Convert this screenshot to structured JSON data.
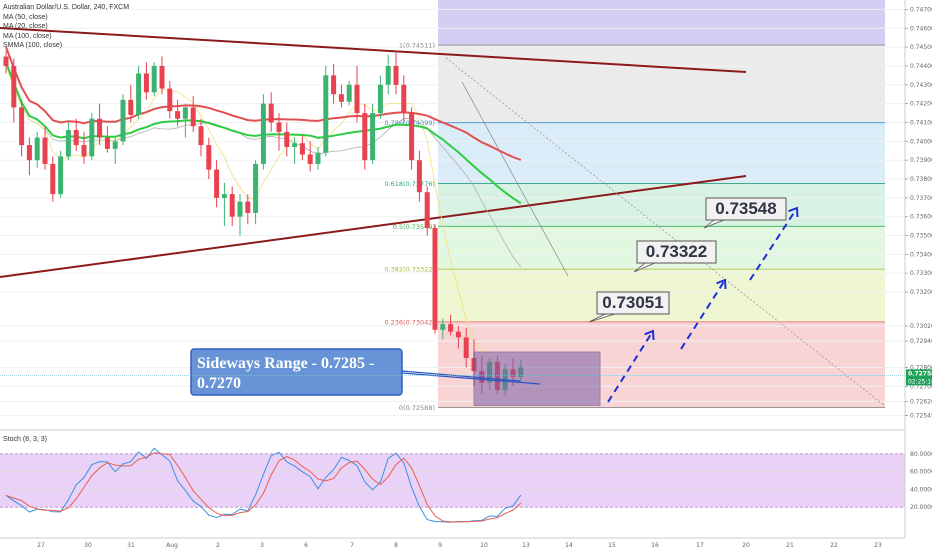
{
  "legend": {
    "title": "Australian Dollar/U.S. Dollar, 240, FXCM",
    "ma50": "MA (50, close)",
    "ma20": "MA (20, close)",
    "ma100": "MA (100, close)",
    "smma100": "SMMA (100, close)",
    "stoch": "Stoch (8, 3, 3)"
  },
  "chart_data": {
    "type": "line",
    "price_ticks": [
      "0.74700",
      "0.74600",
      "0.74500",
      "0.74400",
      "0.74300",
      "0.74200",
      "0.74100",
      "0.74000",
      "0.73900",
      "0.73800",
      "0.73700",
      "0.73600",
      "0.73500",
      "0.73400",
      "0.73300",
      "0.73200",
      "0.73020",
      "0.72940",
      "0.72800",
      "0.72700",
      "0.72620",
      "0.72545"
    ],
    "price_range": [
      0.725,
      0.7475
    ],
    "date_ticks": [
      "27",
      "30",
      "31",
      "Aug",
      "2",
      "3",
      "6",
      "7",
      "8",
      "9",
      "10",
      "13",
      "14",
      "15",
      "16",
      "17",
      "20",
      "21",
      "22",
      "23"
    ],
    "stoch_ticks": [
      "80.0000",
      "60.0000",
      "40.0000",
      "20.0000"
    ],
    "stoch_range": [
      0,
      100
    ],
    "current_price": "0.72758",
    "current_time": "02:25:18",
    "fibonacci": [
      {
        "label": "0(0.72588)",
        "level": 0.72588
      },
      {
        "label": "0.236(0.73042)",
        "level": 0.73042
      },
      {
        "label": "0.382(0.73322)",
        "level": 0.73322
      },
      {
        "label": "0.5(0.73549)",
        "level": 0.73549
      },
      {
        "label": "0.618(0.73776)",
        "level": 0.73776
      },
      {
        "label": "0.786(0.74099)",
        "level": 0.74099
      },
      {
        "label": "1(0.74511)",
        "level": 0.74511
      }
    ],
    "annotations": {
      "sideways_line1": "Sideways Range - 0.7285 -",
      "sideways_line2": "0.7270",
      "target1": "0.73051",
      "target2": "0.73322",
      "target3": "0.73548"
    },
    "candles": [
      [
        0.7445,
        0.7448,
        0.7436,
        0.744
      ],
      [
        0.744,
        0.7444,
        0.741,
        0.7418
      ],
      [
        0.7418,
        0.7422,
        0.7392,
        0.7398
      ],
      [
        0.7398,
        0.7402,
        0.7382,
        0.739
      ],
      [
        0.739,
        0.7405,
        0.7386,
        0.7402
      ],
      [
        0.7402,
        0.7408,
        0.7385,
        0.7388
      ],
      [
        0.7388,
        0.7392,
        0.7368,
        0.7372
      ],
      [
        0.7372,
        0.7395,
        0.737,
        0.7392
      ],
      [
        0.7392,
        0.741,
        0.739,
        0.7406
      ],
      [
        0.7406,
        0.7412,
        0.7395,
        0.7398
      ],
      [
        0.7398,
        0.7405,
        0.7388,
        0.7392
      ],
      [
        0.7392,
        0.7415,
        0.739,
        0.7412
      ],
      [
        0.7412,
        0.742,
        0.7398,
        0.7402
      ],
      [
        0.7402,
        0.7408,
        0.7394,
        0.7396
      ],
      [
        0.7396,
        0.7402,
        0.7388,
        0.74
      ],
      [
        0.74,
        0.7425,
        0.7398,
        0.7422
      ],
      [
        0.7422,
        0.743,
        0.741,
        0.7414
      ],
      [
        0.7414,
        0.744,
        0.7412,
        0.7436
      ],
      [
        0.7436,
        0.7442,
        0.7422,
        0.7426
      ],
      [
        0.7426,
        0.7442,
        0.7424,
        0.744
      ],
      [
        0.744,
        0.7445,
        0.7425,
        0.7428
      ],
      [
        0.7428,
        0.7432,
        0.7412,
        0.7416
      ],
      [
        0.7416,
        0.7422,
        0.7408,
        0.7412
      ],
      [
        0.7412,
        0.742,
        0.7402,
        0.7418
      ],
      [
        0.7418,
        0.7424,
        0.7405,
        0.7408
      ],
      [
        0.7408,
        0.7412,
        0.7392,
        0.7398
      ],
      [
        0.7398,
        0.7402,
        0.738,
        0.7385
      ],
      [
        0.7385,
        0.739,
        0.7365,
        0.737
      ],
      [
        0.737,
        0.7378,
        0.7355,
        0.7372
      ],
      [
        0.7372,
        0.7376,
        0.7355,
        0.736
      ],
      [
        0.736,
        0.7372,
        0.735,
        0.7368
      ],
      [
        0.7368,
        0.7372,
        0.7356,
        0.7362
      ],
      [
        0.7362,
        0.739,
        0.7356,
        0.7388
      ],
      [
        0.7388,
        0.7425,
        0.7385,
        0.742
      ],
      [
        0.742,
        0.7426,
        0.7405,
        0.741
      ],
      [
        0.741,
        0.7415,
        0.7395,
        0.7405
      ],
      [
        0.7405,
        0.741,
        0.7392,
        0.7397
      ],
      [
        0.7397,
        0.7402,
        0.7388,
        0.7399
      ],
      [
        0.7399,
        0.7403,
        0.739,
        0.7393
      ],
      [
        0.7393,
        0.74,
        0.7384,
        0.7388
      ],
      [
        0.7388,
        0.7397,
        0.7385,
        0.7394
      ],
      [
        0.7394,
        0.744,
        0.7392,
        0.7435
      ],
      [
        0.7435,
        0.7441,
        0.742,
        0.7425
      ],
      [
        0.7425,
        0.743,
        0.7418,
        0.7421
      ],
      [
        0.7421,
        0.7432,
        0.7419,
        0.743
      ],
      [
        0.743,
        0.744,
        0.741,
        0.7415
      ],
      [
        0.7415,
        0.742,
        0.7385,
        0.739
      ],
      [
        0.739,
        0.742,
        0.7388,
        0.7415
      ],
      [
        0.7415,
        0.7435,
        0.7412,
        0.743
      ],
      [
        0.743,
        0.7446,
        0.7425,
        0.744
      ],
      [
        0.744,
        0.7448,
        0.7425,
        0.743
      ],
      [
        0.743,
        0.7435,
        0.741,
        0.7415
      ],
      [
        0.7415,
        0.7418,
        0.7385,
        0.739
      ],
      [
        0.739,
        0.7395,
        0.7368,
        0.7373
      ],
      [
        0.7373,
        0.7376,
        0.735,
        0.7354
      ],
      [
        0.7354,
        0.7356,
        0.7298,
        0.73
      ],
      [
        0.73,
        0.7306,
        0.7295,
        0.7303
      ],
      [
        0.7303,
        0.7308,
        0.7297,
        0.7299
      ],
      [
        0.7299,
        0.7302,
        0.729,
        0.7296
      ],
      [
        0.7296,
        0.7301,
        0.728,
        0.7285
      ],
      [
        0.7285,
        0.7295,
        0.727,
        0.7278
      ],
      [
        0.7278,
        0.7286,
        0.7266,
        0.7272
      ],
      [
        0.7272,
        0.7285,
        0.7268,
        0.7283
      ],
      [
        0.7283,
        0.7286,
        0.7266,
        0.7268
      ],
      [
        0.7268,
        0.7282,
        0.7265,
        0.7279
      ],
      [
        0.7279,
        0.7285,
        0.727,
        0.7275
      ],
      [
        0.7275,
        0.7284,
        0.7272,
        0.728
      ]
    ]
  }
}
